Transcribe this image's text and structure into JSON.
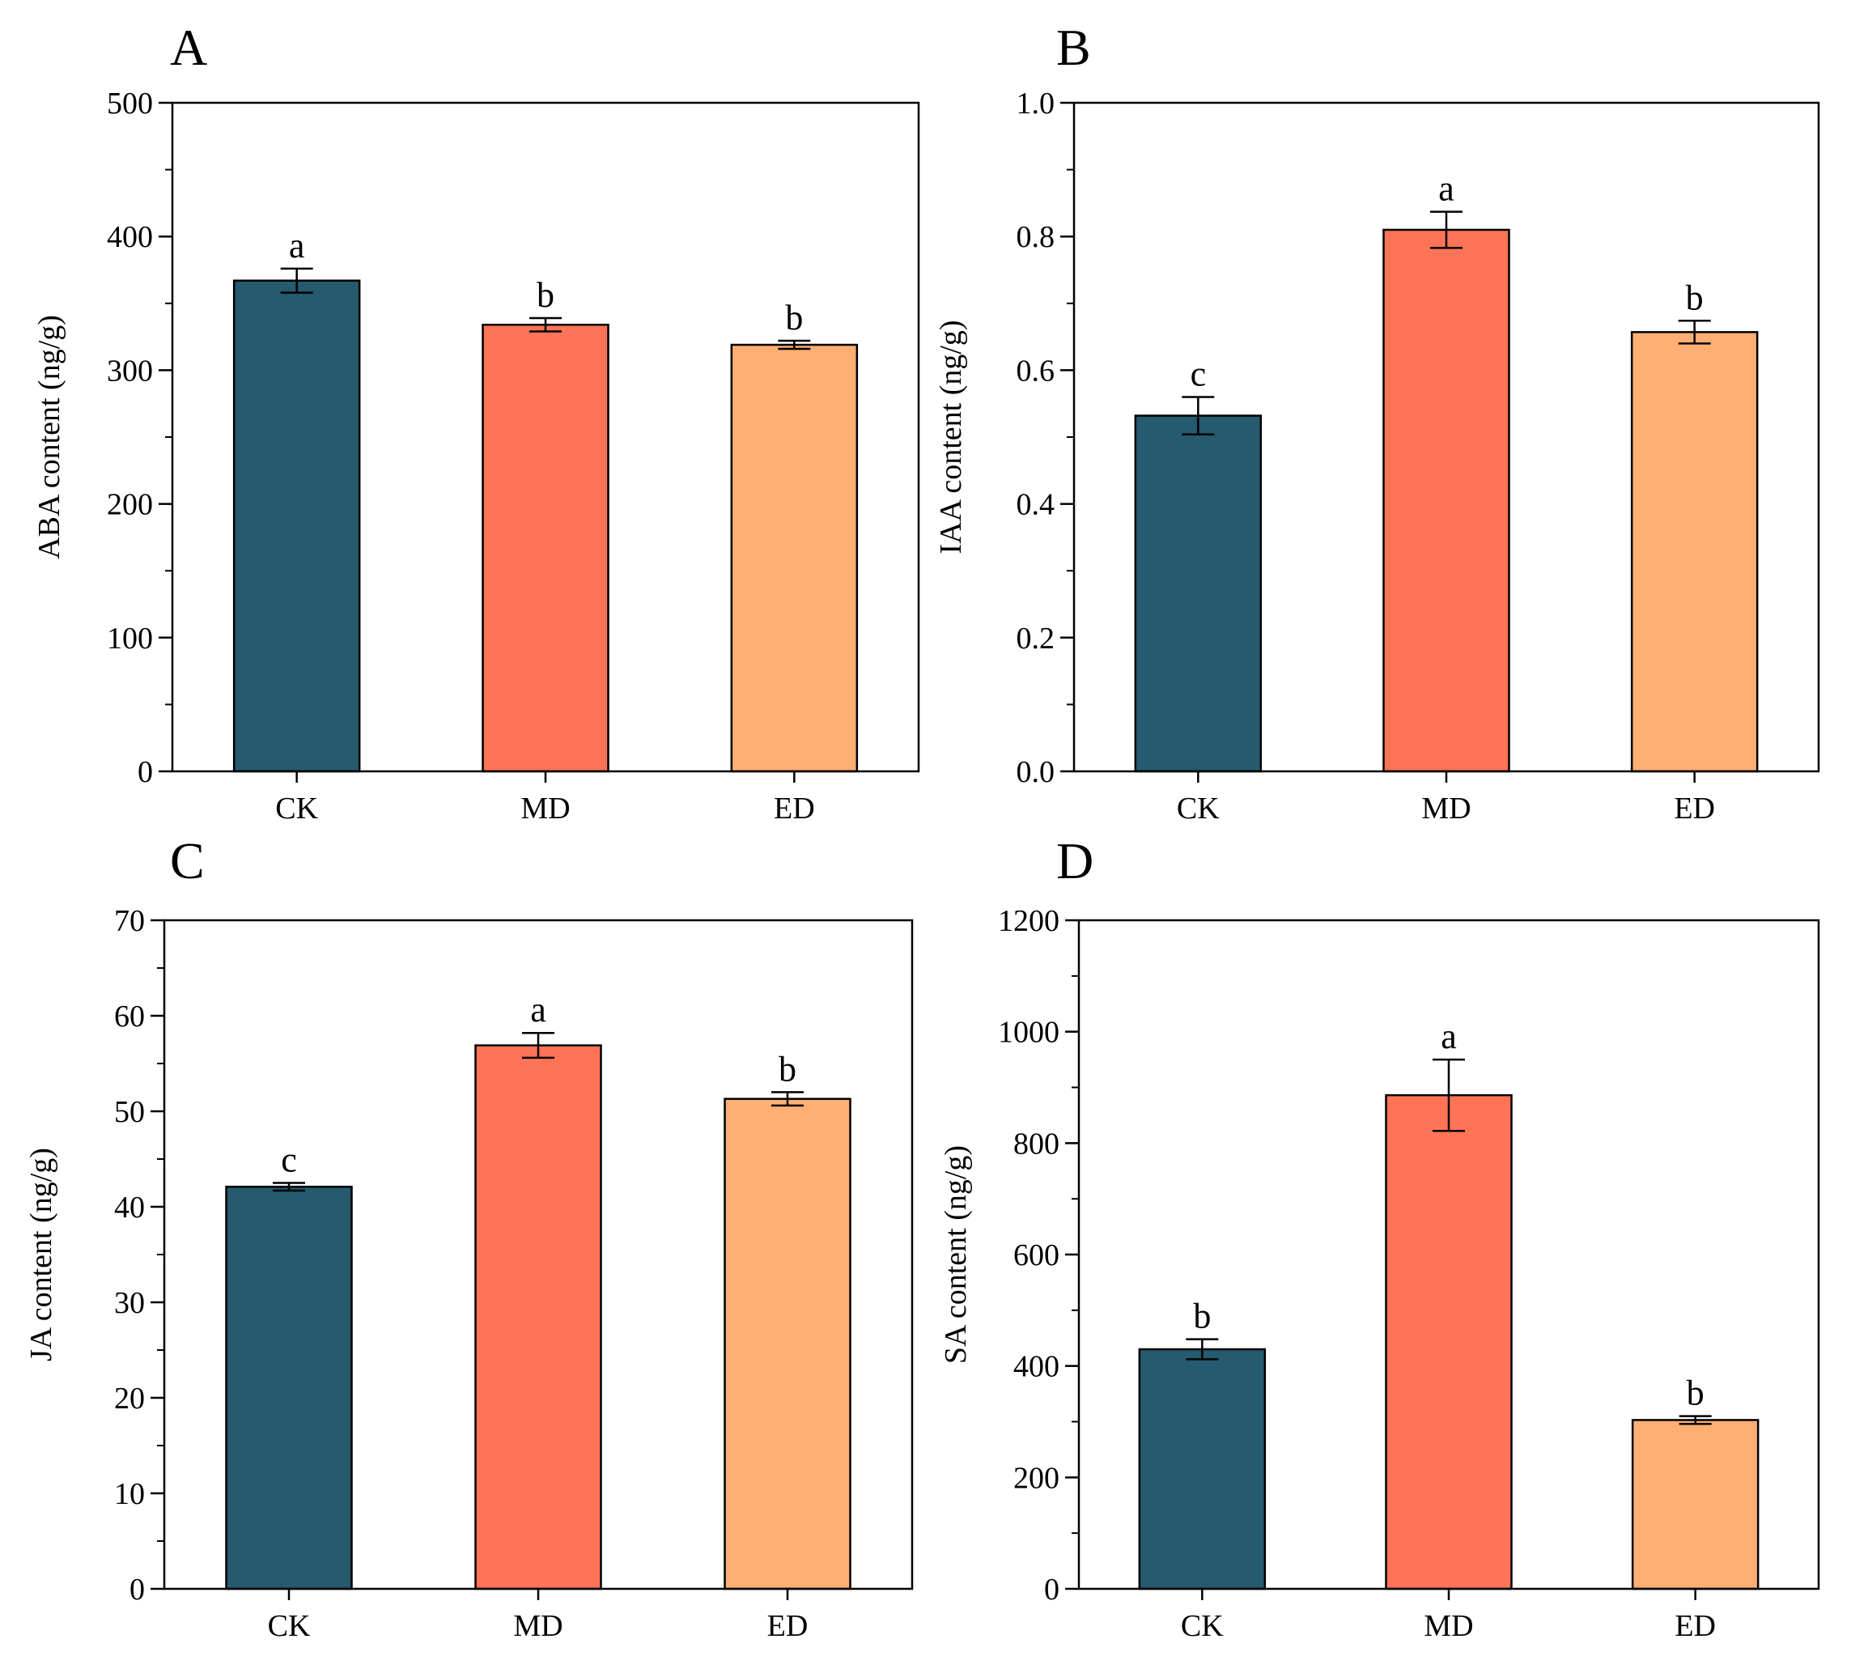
{
  "colors": {
    "CK": "#255a6f",
    "MD": "#ff7456",
    "ED": "#ffaf73",
    "outline": "#000000"
  },
  "chart_data": [
    {
      "panel": "A",
      "type": "bar",
      "categories": [
        "CK",
        "MD",
        "ED"
      ],
      "values": [
        367,
        334,
        319
      ],
      "errors": [
        9,
        5,
        3
      ],
      "significance": [
        "a",
        "b",
        "b"
      ],
      "ylabel": "ABA content (ng/g)",
      "ylim": [
        0,
        500
      ],
      "yticks": [
        0,
        100,
        200,
        300,
        400,
        500
      ],
      "ytick_labels": [
        "0",
        "100",
        "200",
        "300",
        "400",
        "500"
      ],
      "minor_step": 50,
      "grid": false
    },
    {
      "panel": "B",
      "type": "bar",
      "categories": [
        "CK",
        "MD",
        "ED"
      ],
      "values": [
        0.532,
        0.81,
        0.657
      ],
      "errors": [
        0.028,
        0.027,
        0.017
      ],
      "significance": [
        "c",
        "a",
        "b"
      ],
      "ylabel": "IAA content (ng/g)",
      "ylim": [
        0,
        1.0
      ],
      "yticks": [
        0,
        0.2,
        0.4,
        0.6,
        0.8,
        1.0
      ],
      "ytick_labels": [
        "0.0",
        "0.2",
        "0.4",
        "0.6",
        "0.8",
        "1.0"
      ],
      "minor_step": 0.1,
      "grid": false
    },
    {
      "panel": "C",
      "type": "bar",
      "categories": [
        "CK",
        "MD",
        "ED"
      ],
      "values": [
        42.1,
        56.9,
        51.3
      ],
      "errors": [
        0.4,
        1.3,
        0.7
      ],
      "significance": [
        "c",
        "a",
        "b"
      ],
      "ylabel": "JA content (ng/g)",
      "ylim": [
        0,
        70
      ],
      "yticks": [
        0,
        10,
        20,
        30,
        40,
        50,
        60,
        70
      ],
      "ytick_labels": [
        "0",
        "10",
        "20",
        "30",
        "40",
        "50",
        "60",
        "70"
      ],
      "minor_step": 5,
      "grid": false
    },
    {
      "panel": "D",
      "type": "bar",
      "categories": [
        "CK",
        "MD",
        "ED"
      ],
      "values": [
        430,
        886,
        303
      ],
      "errors": [
        18,
        64,
        7
      ],
      "significance": [
        "b",
        "a",
        "b"
      ],
      "ylabel": "SA content (ng/g)",
      "ylim": [
        0,
        1200
      ],
      "yticks": [
        0,
        200,
        400,
        600,
        800,
        1000,
        1200
      ],
      "ytick_labels": [
        "0",
        "200",
        "400",
        "600",
        "800",
        "1000",
        "1200"
      ],
      "minor_step": 100,
      "grid": false
    }
  ]
}
